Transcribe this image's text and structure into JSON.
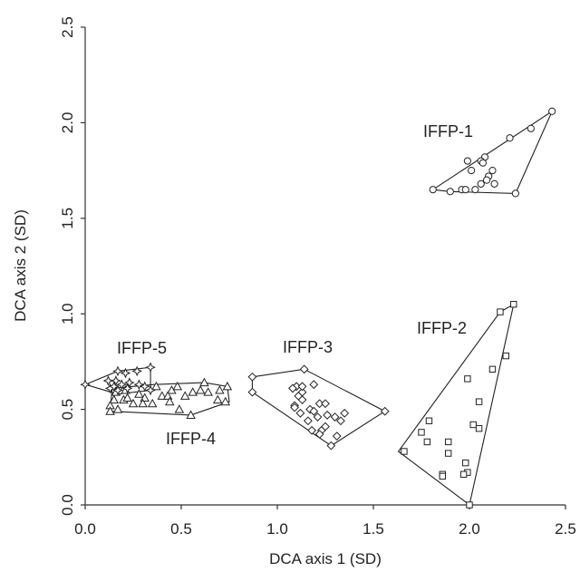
{
  "chart_data": {
    "type": "scatter",
    "title": "",
    "xlabel": "DCA axis 1 (SD)",
    "ylabel": "DCA axis 2 (SD)",
    "xlim": [
      0,
      2.5
    ],
    "ylim": [
      0,
      2.5
    ],
    "xticks": [
      "0.0",
      "0.5",
      "1.0",
      "1.5",
      "2.0",
      "2.5"
    ],
    "yticks": [
      "0.0",
      "0.5",
      "1.0",
      "1.5",
      "2.0",
      "2.5"
    ],
    "grid": false,
    "legend": "none",
    "series": [
      {
        "name": "IFFP-1",
        "marker": "circle",
        "points": [
          [
            2.43,
            2.06
          ],
          [
            2.32,
            1.97
          ],
          [
            2.21,
            1.92
          ],
          [
            2.08,
            1.82
          ],
          [
            2.06,
            1.8
          ],
          [
            2.07,
            1.79
          ],
          [
            1.99,
            1.8
          ],
          [
            2.01,
            1.75
          ],
          [
            2.12,
            1.75
          ],
          [
            2.1,
            1.72
          ],
          [
            2.09,
            1.7
          ],
          [
            2.13,
            1.68
          ],
          [
            2.06,
            1.68
          ],
          [
            2.03,
            1.65
          ],
          [
            1.96,
            1.65
          ],
          [
            1.98,
            1.65
          ],
          [
            1.9,
            1.64
          ],
          [
            1.81,
            1.65
          ],
          [
            2.24,
            1.63
          ]
        ],
        "hull": [
          [
            1.81,
            1.65
          ],
          [
            2.43,
            2.06
          ],
          [
            2.24,
            1.63
          ],
          [
            1.9,
            1.64
          ]
        ]
      },
      {
        "name": "IFFP-2",
        "marker": "square",
        "points": [
          [
            2.23,
            1.05
          ],
          [
            2.16,
            1.01
          ],
          [
            2.19,
            0.78
          ],
          [
            2.12,
            0.71
          ],
          [
            1.99,
            0.66
          ],
          [
            2.05,
            0.54
          ],
          [
            2.02,
            0.42
          ],
          [
            2.05,
            0.4
          ],
          [
            1.79,
            0.44
          ],
          [
            1.75,
            0.38
          ],
          [
            1.66,
            0.28
          ],
          [
            1.78,
            0.33
          ],
          [
            1.89,
            0.33
          ],
          [
            1.89,
            0.27
          ],
          [
            1.98,
            0.22
          ],
          [
            1.99,
            0.17
          ],
          [
            1.97,
            0.16
          ],
          [
            1.86,
            0.16
          ],
          [
            1.86,
            0.15
          ],
          [
            2.0,
            0.0
          ]
        ],
        "hull": [
          [
            1.63,
            0.28
          ],
          [
            2.0,
            0.0
          ],
          [
            2.23,
            1.05
          ],
          [
            2.16,
            1.01
          ]
        ]
      },
      {
        "name": "IFFP-3",
        "marker": "diamond",
        "points": [
          [
            0.87,
            0.67
          ],
          [
            0.87,
            0.59
          ],
          [
            1.14,
            0.71
          ],
          [
            1.19,
            0.63
          ],
          [
            1.1,
            0.62
          ],
          [
            1.13,
            0.59
          ],
          [
            1.08,
            0.61
          ],
          [
            1.11,
            0.57
          ],
          [
            1.13,
            0.55
          ],
          [
            1.09,
            0.52
          ],
          [
            1.12,
            0.48
          ],
          [
            1.17,
            0.5
          ],
          [
            1.19,
            0.49
          ],
          [
            1.16,
            0.44
          ],
          [
            1.21,
            0.46
          ],
          [
            1.22,
            0.53
          ],
          [
            1.25,
            0.53
          ],
          [
            1.26,
            0.47
          ],
          [
            1.3,
            0.46
          ],
          [
            1.33,
            0.44
          ],
          [
            1.35,
            0.48
          ],
          [
            1.25,
            0.41
          ],
          [
            1.18,
            0.39
          ],
          [
            1.23,
            0.39
          ],
          [
            1.22,
            0.37
          ],
          [
            1.31,
            0.36
          ],
          [
            1.28,
            0.31
          ],
          [
            1.56,
            0.49
          ],
          [
            1.09,
            0.51
          ],
          [
            1.13,
            0.62
          ]
        ],
        "hull": [
          [
            0.87,
            0.67
          ],
          [
            1.14,
            0.71
          ],
          [
            1.56,
            0.49
          ],
          [
            1.28,
            0.31
          ],
          [
            0.87,
            0.59
          ]
        ]
      },
      {
        "name": "IFFP-4",
        "marker": "triangle",
        "points": [
          [
            0.15,
            0.55
          ],
          [
            0.2,
            0.55
          ],
          [
            0.13,
            0.52
          ],
          [
            0.17,
            0.5
          ],
          [
            0.21,
            0.6
          ],
          [
            0.28,
            0.58
          ],
          [
            0.31,
            0.56
          ],
          [
            0.25,
            0.53
          ],
          [
            0.3,
            0.53
          ],
          [
            0.35,
            0.53
          ],
          [
            0.4,
            0.57
          ],
          [
            0.37,
            0.62
          ],
          [
            0.45,
            0.6
          ],
          [
            0.43,
            0.57
          ],
          [
            0.44,
            0.54
          ],
          [
            0.48,
            0.62
          ],
          [
            0.52,
            0.57
          ],
          [
            0.56,
            0.59
          ],
          [
            0.6,
            0.6
          ],
          [
            0.64,
            0.59
          ],
          [
            0.62,
            0.64
          ],
          [
            0.7,
            0.6
          ],
          [
            0.69,
            0.55
          ],
          [
            0.74,
            0.62
          ],
          [
            0.73,
            0.54
          ],
          [
            0.49,
            0.5
          ],
          [
            0.55,
            0.47
          ],
          [
            0.13,
            0.49
          ],
          [
            0.16,
            0.59
          ],
          [
            0.22,
            0.56
          ]
        ],
        "hull": [
          [
            0.13,
            0.49
          ],
          [
            0.55,
            0.47
          ],
          [
            0.75,
            0.54
          ],
          [
            0.74,
            0.62
          ],
          [
            0.62,
            0.64
          ],
          [
            0.36,
            0.63
          ],
          [
            0.14,
            0.61
          ]
        ]
      },
      {
        "name": "IFFP-5",
        "marker": "star",
        "points": [
          [
            0.0,
            0.63
          ],
          [
            0.17,
            0.7
          ],
          [
            0.21,
            0.69
          ],
          [
            0.27,
            0.7
          ],
          [
            0.34,
            0.72
          ],
          [
            0.12,
            0.65
          ],
          [
            0.16,
            0.65
          ],
          [
            0.19,
            0.63
          ],
          [
            0.23,
            0.64
          ],
          [
            0.28,
            0.63
          ],
          [
            0.13,
            0.61
          ],
          [
            0.17,
            0.6
          ],
          [
            0.22,
            0.61
          ],
          [
            0.31,
            0.62
          ],
          [
            0.15,
            0.62
          ],
          [
            0.34,
            0.6
          ]
        ],
        "hull": [
          [
            0.0,
            0.63
          ],
          [
            0.17,
            0.7
          ],
          [
            0.34,
            0.72
          ],
          [
            0.34,
            0.6
          ],
          [
            0.17,
            0.58
          ]
        ]
      }
    ]
  }
}
